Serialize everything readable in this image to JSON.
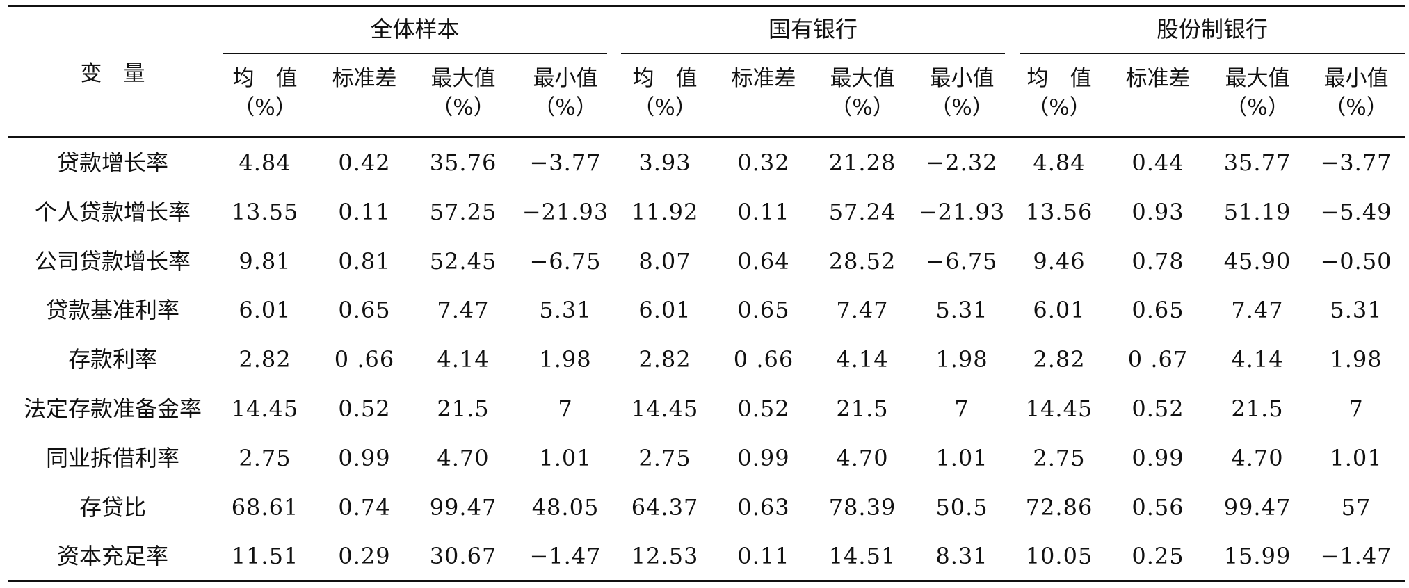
{
  "header": {
    "variable_label": "变　量",
    "groups": [
      "全体样本",
      "国有银行",
      "股份制银行"
    ],
    "columns": [
      [
        "均　值",
        "（%）"
      ],
      [
        "标准差",
        ""
      ],
      [
        "最大值",
        "（%）"
      ],
      [
        "最小值",
        "（%）"
      ]
    ]
  },
  "rows": [
    {
      "label": "贷款增长率",
      "values": [
        "4.84",
        "0.42",
        "35.76",
        "−3.77",
        "3.93",
        "0.32",
        "21.28",
        "−2.32",
        "4.84",
        "0.44",
        "35.77",
        "−3.77"
      ]
    },
    {
      "label": "个人贷款增长率",
      "values": [
        "13.55",
        "0.11",
        "57.25",
        "−21.93",
        "11.92",
        "0.11",
        "57.24",
        "−21.93",
        "13.56",
        "0.93",
        "51.19",
        "−5.49"
      ]
    },
    {
      "label": "公司贷款增长率",
      "values": [
        "9.81",
        "0.81",
        "52.45",
        "−6.75",
        "8.07",
        "0.64",
        "28.52",
        "−6.75",
        "9.46",
        "0.78",
        "45.90",
        "−0.50"
      ]
    },
    {
      "label": "贷款基准利率",
      "values": [
        "6.01",
        "0.65",
        "7.47",
        "5.31",
        "6.01",
        "0.65",
        "7.47",
        "5.31",
        "6.01",
        "0.65",
        "7.47",
        "5.31"
      ]
    },
    {
      "label": "存款利率",
      "values": [
        "2.82",
        "0 .66",
        "4.14",
        "1.98",
        "2.82",
        "0 .66",
        "4.14",
        "1.98",
        "2.82",
        "0 .67",
        "4.14",
        "1.98"
      ]
    },
    {
      "label": "法定存款准备金率",
      "values": [
        "14.45",
        "0.52",
        "21.5",
        "7",
        "14.45",
        "0.52",
        "21.5",
        "7",
        "14.45",
        "0.52",
        "21.5",
        "7"
      ]
    },
    {
      "label": "同业拆借利率",
      "values": [
        "2.75",
        "0.99",
        "4.70",
        "1.01",
        "2.75",
        "0.99",
        "4.70",
        "1.01",
        "2.75",
        "0.99",
        "4.70",
        "1.01"
      ]
    },
    {
      "label": "存贷比",
      "values": [
        "68.61",
        "0.74",
        "99.47",
        "48.05",
        "64.37",
        "0.63",
        "78.39",
        "50.5",
        "72.86",
        "0.56",
        "99.47",
        "57"
      ]
    },
    {
      "label": "资本充足率",
      "values": [
        "11.51",
        "0.29",
        "30.67",
        "−1.47",
        "12.53",
        "0.11",
        "14.51",
        "8.31",
        "10.05",
        "0.25",
        "15.99",
        "−1.47"
      ]
    }
  ]
}
